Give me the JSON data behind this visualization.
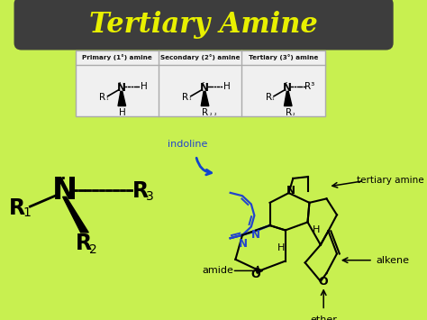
{
  "bg_color": "#c8f050",
  "title_text": "Tertiary Amine",
  "title_bg": "#3d3d3d",
  "title_color": "#e8f000",
  "title_fontsize": 22,
  "table_bg": "#f0f0f0",
  "table_border": "#aaaaaa",
  "primary_label": "Primary (1°) amine",
  "secondary_label": "Secondary (2°) amine",
  "tertiary_label": "Tertiary (3°) amine",
  "indoline_label": "indoline",
  "indoline_color": "#2244cc",
  "amide_label": "amide",
  "alkene_label": "alkene",
  "ether_label": "ether",
  "tertiary_amine_label": "tertiary amine",
  "arrow_color": "#1144cc",
  "fig_w": 4.74,
  "fig_h": 3.55,
  "dpi": 100
}
